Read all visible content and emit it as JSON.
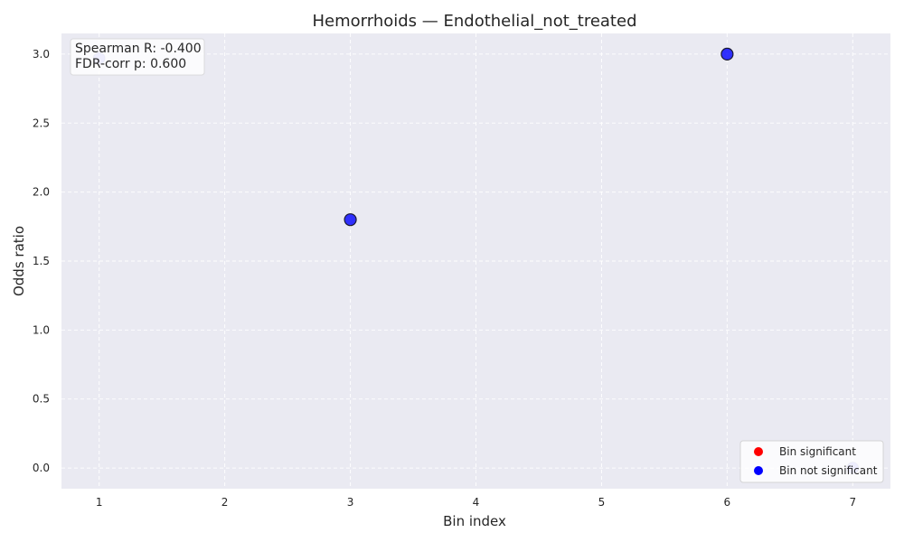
{
  "chart_data": {
    "type": "scatter",
    "title": "Hemorrhoids — Endothelial_not_treated",
    "xlabel": "Bin index",
    "ylabel": "Odds ratio",
    "xlim": [
      0.7,
      7.3
    ],
    "ylim": [
      -0.15,
      3.15
    ],
    "xticks": [
      1,
      2,
      3,
      4,
      5,
      6,
      7
    ],
    "yticks": [
      0.0,
      0.5,
      1.0,
      1.5,
      2.0,
      2.5,
      3.0
    ],
    "ytick_labels": [
      "0.0",
      "0.5",
      "1.0",
      "1.5",
      "2.0",
      "2.5",
      "3.0"
    ],
    "grid": true,
    "legend_position": "bottom-right",
    "series": [
      {
        "name": "Bin significant",
        "color": "#ff0000",
        "points": []
      },
      {
        "name": "Bin not significant",
        "color": "#0000ff",
        "points": [
          {
            "x": 1,
            "y": 2.97,
            "faded": true
          },
          {
            "x": 3,
            "y": 1.8,
            "faded": false
          },
          {
            "x": 6,
            "y": 3.0,
            "faded": false
          },
          {
            "x": 7,
            "y": 0.0,
            "faded": true
          }
        ]
      }
    ],
    "annotation": {
      "line1": "Spearman R: -0.400",
      "line2": "FDR-corr p: 0.600"
    }
  },
  "colors": {
    "plot_bg": "#eaeaf2",
    "grid": "#ffffff",
    "marker_edge": "#1a1a33"
  }
}
